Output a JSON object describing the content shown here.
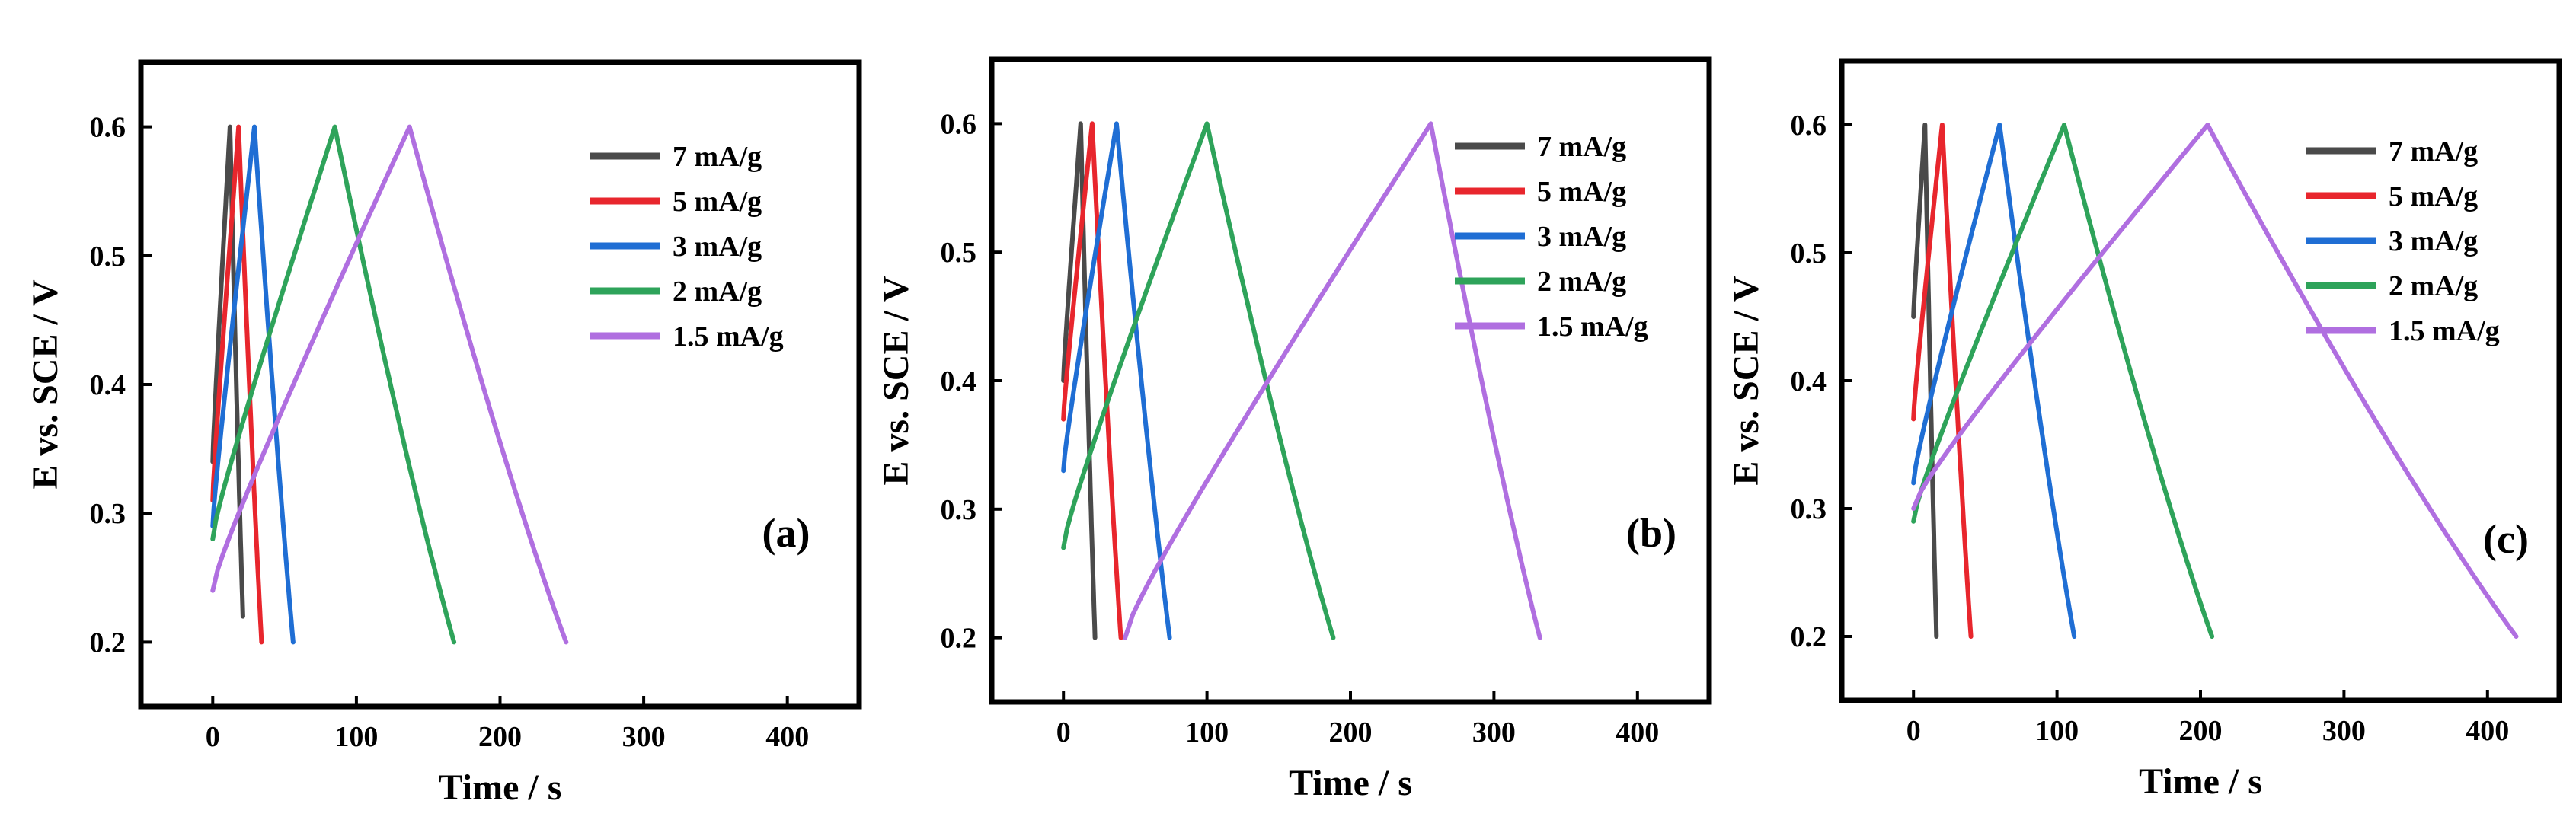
{
  "figure": {
    "panel_count": 3
  },
  "colors": {
    "7 mA/g": "#4a4a4a",
    "5 mA/g": "#e8262d",
    "3 mA/g": "#1f6ed4",
    "2 mA/g": "#2ea35a",
    "1.5 mA/g": "#b06fe0"
  },
  "chart_data": [
    {
      "type": "line",
      "panel_label": "(a)",
      "xlabel": "Time / s",
      "ylabel": "E vs. SCE / V",
      "xlim": [
        -50,
        450
      ],
      "ylim": [
        0.15,
        0.65
      ],
      "xticks": [
        0,
        100,
        200,
        300,
        400
      ],
      "yticks": [
        0.2,
        0.3,
        0.4,
        0.5,
        0.6
      ],
      "ytick_labels": [
        "0.2",
        "0.3",
        "0.4",
        "0.5",
        "0.6"
      ],
      "legend_position": "top-right",
      "series": [
        {
          "name": "7 mA/g",
          "start": [
            0,
            0.34
          ],
          "peak": [
            12,
            0.6
          ],
          "end": [
            21,
            0.22
          ]
        },
        {
          "name": "5 mA/g",
          "start": [
            0,
            0.31
          ],
          "peak": [
            18,
            0.6
          ],
          "end": [
            34,
            0.2
          ]
        },
        {
          "name": "3 mA/g",
          "start": [
            0,
            0.29
          ],
          "peak": [
            29,
            0.6
          ],
          "end": [
            56,
            0.2
          ]
        },
        {
          "name": "2 mA/g",
          "start": [
            0,
            0.28
          ],
          "peak": [
            85,
            0.6
          ],
          "end": [
            168,
            0.2
          ]
        },
        {
          "name": "1.5 mA/g",
          "start": [
            0,
            0.24
          ],
          "peak": [
            137,
            0.6
          ],
          "end": [
            246,
            0.2
          ]
        }
      ]
    },
    {
      "type": "line",
      "panel_label": "(b)",
      "xlabel": "Time / s",
      "ylabel": "E vs. SCE / V",
      "xlim": [
        -50,
        450
      ],
      "ylim": [
        0.15,
        0.65
      ],
      "xticks": [
        0,
        100,
        200,
        300,
        400
      ],
      "yticks": [
        0.2,
        0.3,
        0.4,
        0.5,
        0.6
      ],
      "ytick_labels": [
        "0.2",
        "0.3",
        "0.4",
        "0.5",
        "0.6"
      ],
      "legend_position": "top-right",
      "series": [
        {
          "name": "7 mA/g",
          "start": [
            0,
            0.4
          ],
          "peak": [
            12,
            0.6
          ],
          "end": [
            22,
            0.2
          ]
        },
        {
          "name": "5 mA/g",
          "start": [
            0,
            0.37
          ],
          "peak": [
            20,
            0.6
          ],
          "end": [
            40,
            0.2
          ]
        },
        {
          "name": "3 mA/g",
          "start": [
            0,
            0.33
          ],
          "peak": [
            37,
            0.6
          ],
          "end": [
            74,
            0.2
          ]
        },
        {
          "name": "2 mA/g",
          "start": [
            0,
            0.27
          ],
          "peak": [
            100,
            0.6
          ],
          "end": [
            188,
            0.2
          ]
        },
        {
          "name": "1.5 mA/g",
          "start": [
            43,
            0.2
          ],
          "peak": [
            256,
            0.6
          ],
          "end": [
            332,
            0.2
          ]
        }
      ]
    },
    {
      "type": "line",
      "panel_label": "(c)",
      "xlabel": "Time / s",
      "ylabel": "E vs. SCE / V",
      "xlim": [
        -50,
        450
      ],
      "ylim": [
        0.15,
        0.65
      ],
      "xticks": [
        0,
        100,
        200,
        300,
        400
      ],
      "yticks": [
        0.2,
        0.3,
        0.4,
        0.5,
        0.6
      ],
      "ytick_labels": [
        "0.2",
        "0.3",
        "0.4",
        "0.5",
        "0.6"
      ],
      "legend_position": "top-right",
      "series": [
        {
          "name": "7 mA/g",
          "start": [
            0,
            0.45
          ],
          "peak": [
            8,
            0.6
          ],
          "end": [
            16,
            0.2
          ]
        },
        {
          "name": "5 mA/g",
          "start": [
            0,
            0.37
          ],
          "peak": [
            20,
            0.6
          ],
          "end": [
            40,
            0.2
          ]
        },
        {
          "name": "3 mA/g",
          "start": [
            0,
            0.32
          ],
          "peak": [
            60,
            0.6
          ],
          "end": [
            112,
            0.2
          ]
        },
        {
          "name": "2 mA/g",
          "start": [
            0,
            0.29
          ],
          "peak": [
            105,
            0.6
          ],
          "end": [
            208,
            0.2
          ]
        },
        {
          "name": "1.5 mA/g",
          "start": [
            0,
            0.3
          ],
          "peak": [
            205,
            0.6
          ],
          "end": [
            420,
            0.2
          ]
        }
      ]
    }
  ]
}
